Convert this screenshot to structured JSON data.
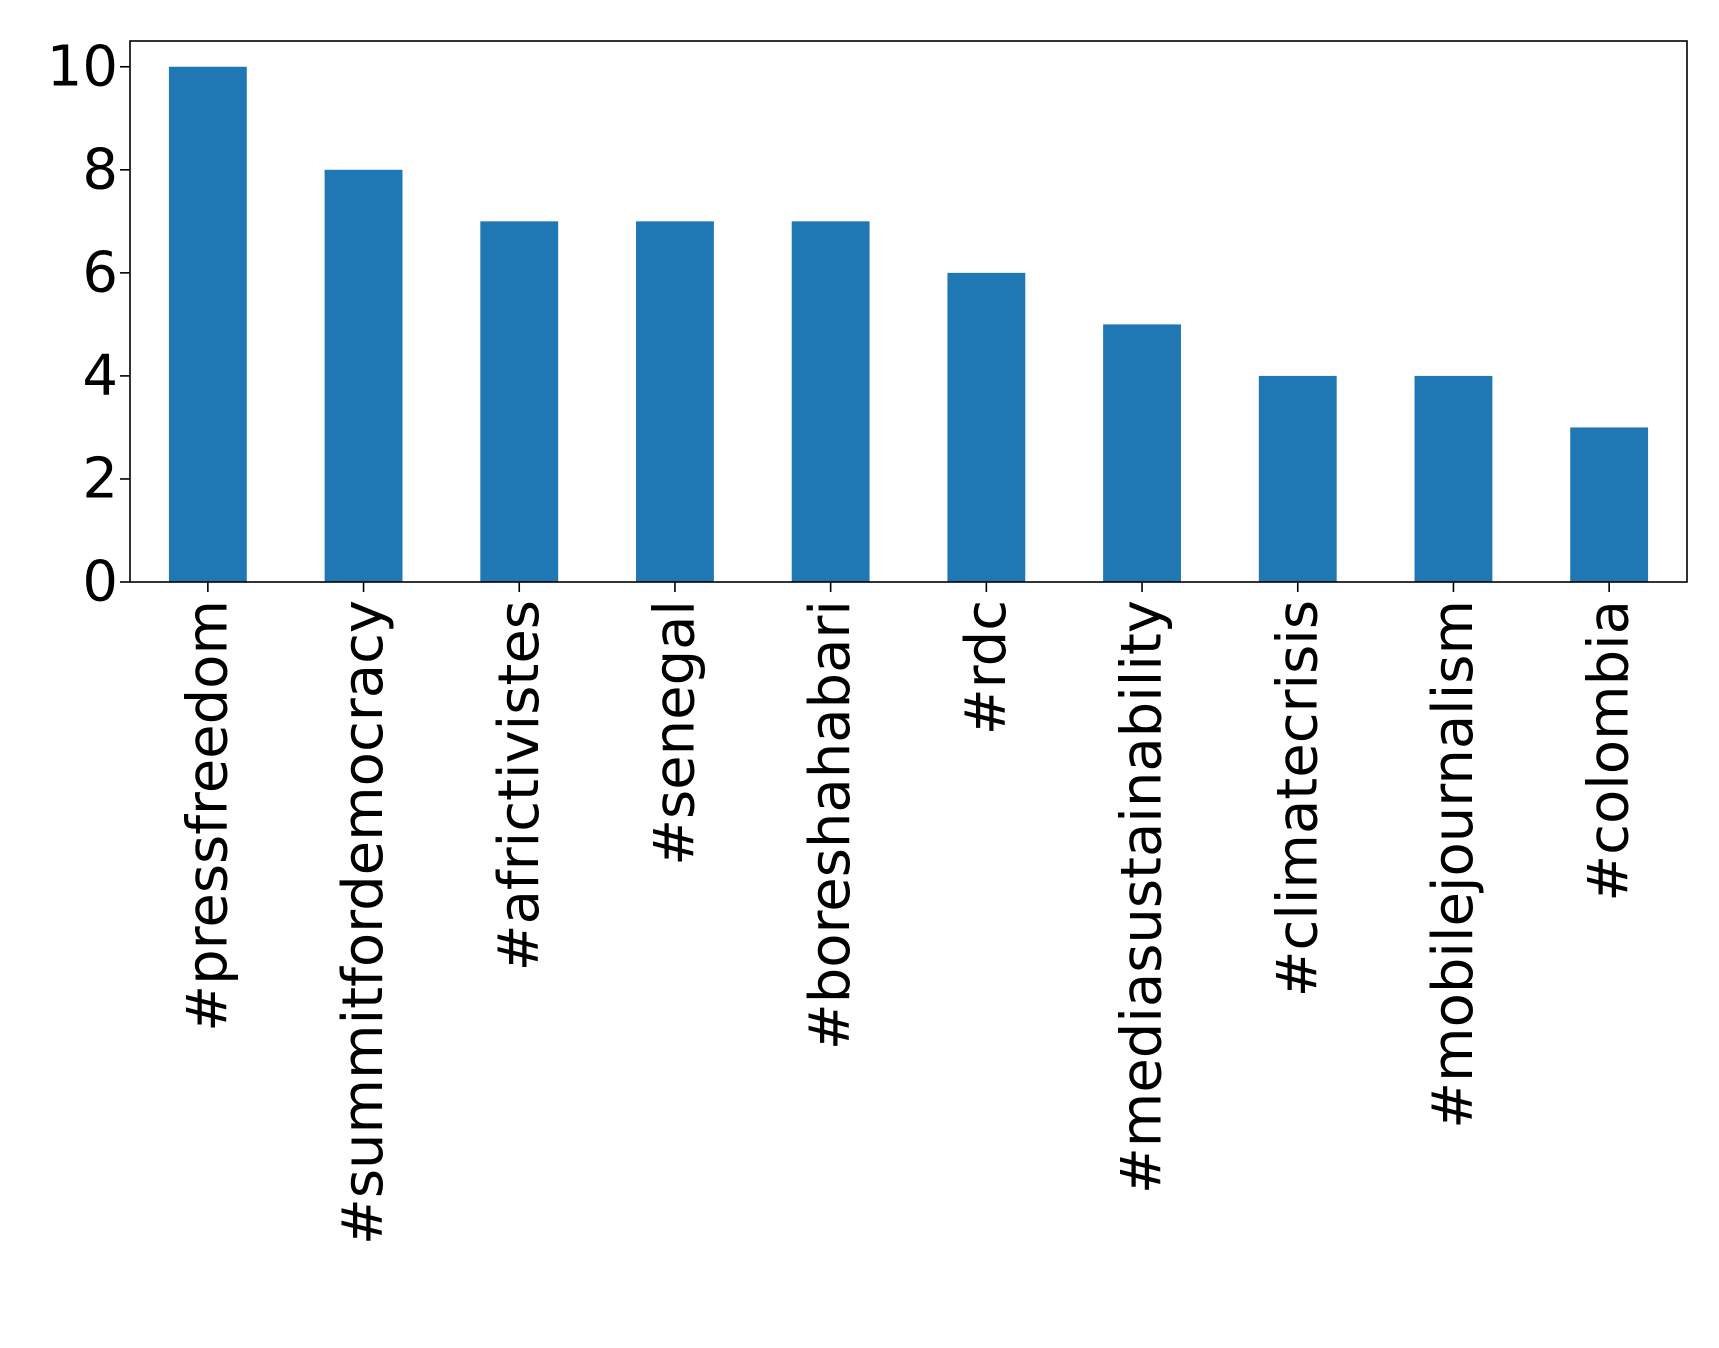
{
  "chart_data": {
    "type": "bar",
    "categories": [
      "#pressfreedom",
      "#summitfordemocracy",
      "#africtivistes",
      "#senegal",
      "#boreshahabari",
      "#rdc",
      "#mediasustainability",
      "#climatecrisis",
      "#mobilejournalism",
      "#colombia"
    ],
    "values": [
      10,
      8,
      7,
      7,
      7,
      6,
      5,
      4,
      4,
      3
    ],
    "yticks": [
      0,
      2,
      4,
      6,
      8,
      10
    ],
    "ylim": [
      0,
      10.5
    ],
    "bar_color": "#1f77b4",
    "xlabel": "",
    "ylabel": "",
    "title": "",
    "grid": false,
    "legend": "none"
  }
}
